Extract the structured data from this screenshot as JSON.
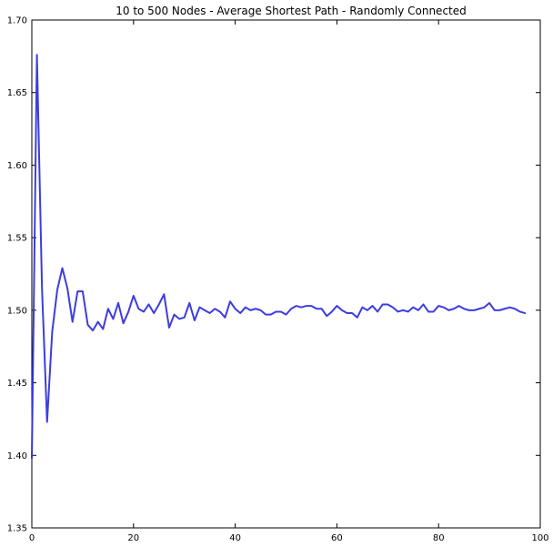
{
  "chart_data": {
    "type": "line",
    "title": "10 to 500 Nodes - Average Shortest Path - Randomly Connected",
    "xlabel": "",
    "ylabel": "",
    "xlim": [
      0,
      100
    ],
    "ylim": [
      1.35,
      1.7
    ],
    "xticks": [
      "0",
      "20",
      "40",
      "60",
      "80",
      "100"
    ],
    "yticks": [
      "1.35",
      "1.40",
      "1.45",
      "1.50",
      "1.55",
      "1.60",
      "1.65",
      "1.70"
    ],
    "grid": false,
    "legend": "none",
    "line_color": "#3333dd",
    "series": [
      {
        "x": [
          0,
          1,
          2,
          3,
          4,
          5,
          6,
          7,
          8,
          9,
          10,
          11,
          12,
          13,
          14,
          15,
          16,
          17,
          18,
          19,
          20,
          21,
          22,
          23,
          24,
          25,
          26,
          27,
          28,
          29,
          30,
          31,
          32,
          33,
          34,
          35,
          36,
          37,
          38,
          39,
          40,
          41,
          42,
          43,
          44,
          45,
          46,
          47,
          48,
          49,
          50,
          51,
          52,
          53,
          54,
          55,
          56,
          57,
          58,
          59,
          60,
          61,
          62,
          63,
          64,
          65,
          66,
          67,
          68,
          69,
          70,
          71,
          72,
          73,
          74,
          75,
          76,
          77,
          78,
          79,
          80,
          81,
          82,
          83,
          84,
          85,
          86,
          87,
          88,
          89,
          90,
          91,
          92,
          93,
          94,
          95,
          96,
          97
        ],
        "values": [
          1.398,
          1.676,
          1.515,
          1.423,
          1.485,
          1.514,
          1.529,
          1.515,
          1.492,
          1.513,
          1.513,
          1.49,
          1.486,
          1.492,
          1.487,
          1.501,
          1.494,
          1.505,
          1.491,
          1.499,
          1.51,
          1.501,
          1.499,
          1.504,
          1.498,
          1.504,
          1.511,
          1.488,
          1.497,
          1.494,
          1.495,
          1.505,
          1.493,
          1.502,
          1.5,
          1.498,
          1.501,
          1.499,
          1.495,
          1.506,
          1.501,
          1.498,
          1.502,
          1.5,
          1.501,
          1.5,
          1.497,
          1.497,
          1.499,
          1.499,
          1.497,
          1.501,
          1.503,
          1.502,
          1.503,
          1.503,
          1.501,
          1.501,
          1.496,
          1.499,
          1.503,
          1.5,
          1.498,
          1.498,
          1.495,
          1.502,
          1.5,
          1.503,
          1.499,
          1.504,
          1.504,
          1.502,
          1.499,
          1.5,
          1.499,
          1.502,
          1.5,
          1.504,
          1.499,
          1.499,
          1.503,
          1.502,
          1.5,
          1.501,
          1.503,
          1.501,
          1.5,
          1.5,
          1.501,
          1.502,
          1.505,
          1.5,
          1.5,
          1.501,
          1.502,
          1.501,
          1.499,
          1.498
        ]
      }
    ]
  }
}
